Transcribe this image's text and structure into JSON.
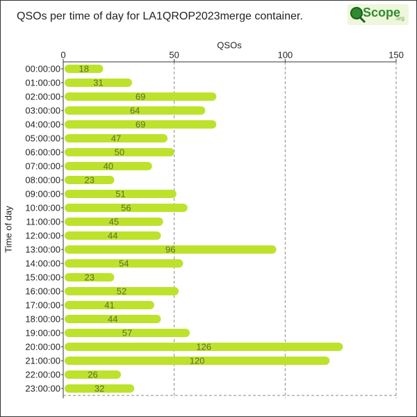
{
  "chart_data": {
    "type": "barh",
    "title": "QSOs per time of day for LA1QROP2023merge container.",
    "logo": {
      "text": "Scope",
      "suffix": ".org"
    },
    "x_label": "QSOs",
    "y_label": "Time of day",
    "categories": [
      "00:00:00",
      "01:00:00",
      "02:00:00",
      "03:00:00",
      "04:00:00",
      "05:00:00",
      "06:00:00",
      "07:00:00",
      "08:00:00",
      "09:00:00",
      "10:00:00",
      "11:00:00",
      "12:00:00",
      "13:00:00",
      "14:00:00",
      "15:00:00",
      "16:00:00",
      "17:00:00",
      "18:00:00",
      "19:00:00",
      "20:00:00",
      "21:00:00",
      "22:00:00",
      "23:00:00"
    ],
    "values": [
      18,
      31,
      69,
      64,
      69,
      47,
      50,
      40,
      23,
      51,
      56,
      45,
      44,
      96,
      54,
      23,
      52,
      41,
      44,
      57,
      126,
      120,
      26,
      32
    ],
    "color": "#bde22c",
    "xlim": [
      0,
      150
    ],
    "xticks": [
      0,
      50,
      100,
      150
    ],
    "grid": true
  }
}
